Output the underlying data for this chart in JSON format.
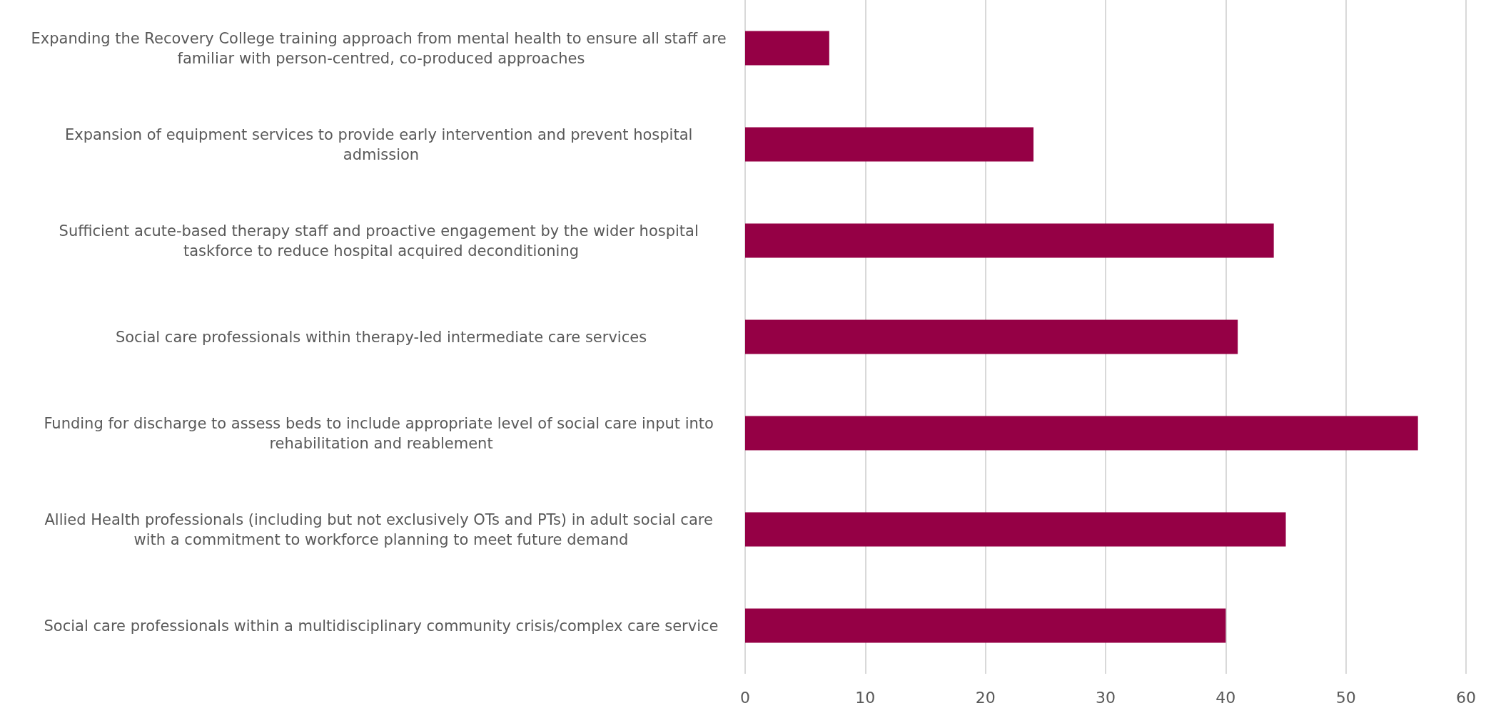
{
  "chart_data": {
    "type": "bar",
    "orientation": "horizontal",
    "categories": [
      "Expanding the Recovery College training approach from mental health to ensure all staff are familiar with person-centred, co-produced approaches",
      "Expansion of equipment services to provide early intervention and prevent hospital admission",
      "Sufficient acute-based therapy staff and proactive engagement by the wider hospital taskforce to reduce hospital acquired deconditioning",
      "Social care professionals within therapy-led intermediate care services",
      "Funding for discharge to assess beds to include appropriate level of social care input into rehabilitation and reablement",
      "Allied Health professionals (including but not exclusively OTs and PTs) in adult social care with a commitment to workforce planning to meet future demand",
      "Social care professionals within a multidisciplinary community crisis/complex care service"
    ],
    "values": [
      7,
      24,
      44,
      41,
      56,
      45,
      40
    ],
    "color": "#950045",
    "xlim": [
      0,
      60
    ],
    "xticks": [
      0,
      10,
      20,
      30,
      40,
      50,
      60
    ],
    "grid": "x"
  }
}
